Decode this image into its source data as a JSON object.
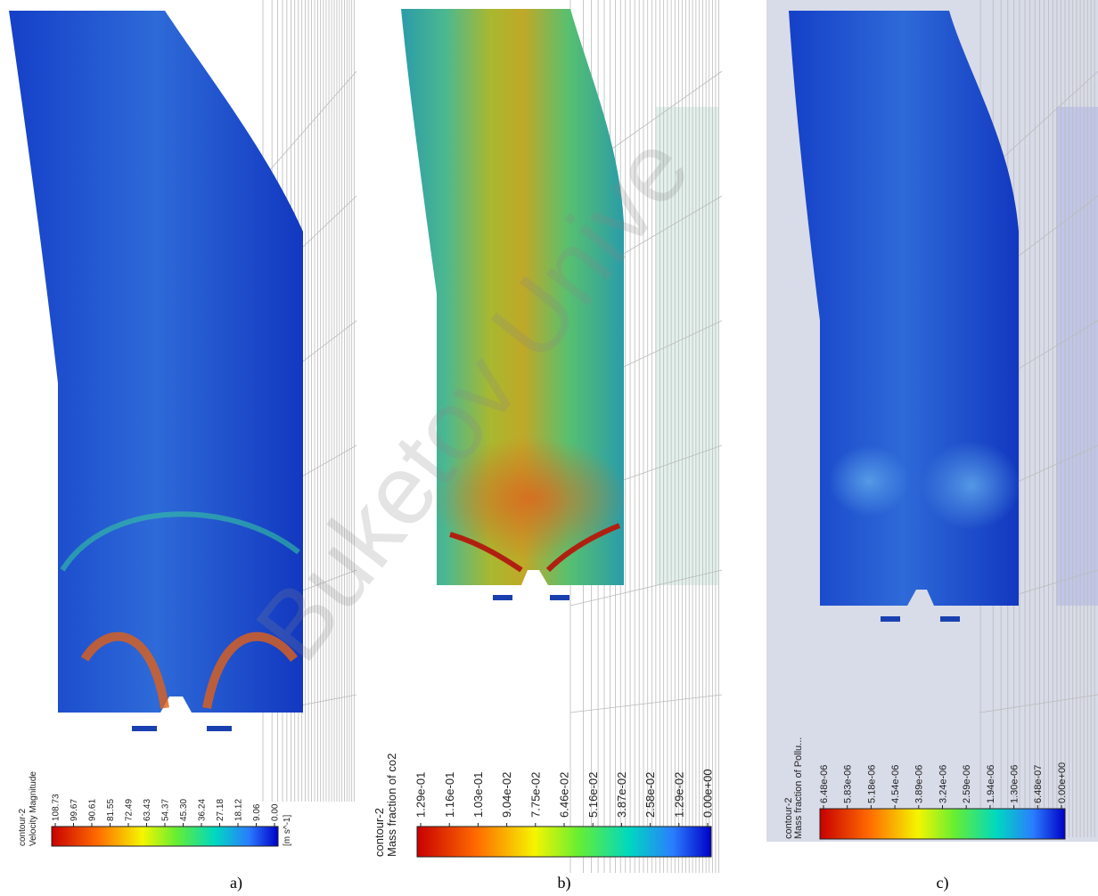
{
  "watermark": "Buketov Unive",
  "panels": [
    {
      "label": "a)",
      "contour": "contour-2",
      "quantity": "Velocity Magnitude",
      "unit": "[m s^-1]",
      "ticks": [
        "108.73",
        "99.67",
        "90.61",
        "81.55",
        "72.49",
        "63.43",
        "54.37",
        "45.30",
        "36.24",
        "27.18",
        "18.12",
        "9.06",
        "0.00"
      ]
    },
    {
      "label": "b)",
      "contour": "contour-2",
      "quantity": "Mass fraction of co2",
      "ticks": [
        "1.29e-01",
        "1.16e-01",
        "1.03e-01",
        "9.04e-02",
        "7.75e-02",
        "6.46e-02",
        "5.16e-02",
        "3.87e-02",
        "2.58e-02",
        "1.29e-02",
        "0.00e+00"
      ]
    },
    {
      "label": "c)",
      "contour": "contour-2",
      "quantity": "Mass fraction of Pollu...",
      "ticks": [
        "6.48e-06",
        "5.83e-06",
        "5.18e-06",
        "4.54e-06",
        "3.89e-06",
        "3.24e-06",
        "2.59e-06",
        "1.94e-06",
        "1.30e-06",
        "6.48e-07",
        "0.00e+00"
      ]
    }
  ]
}
